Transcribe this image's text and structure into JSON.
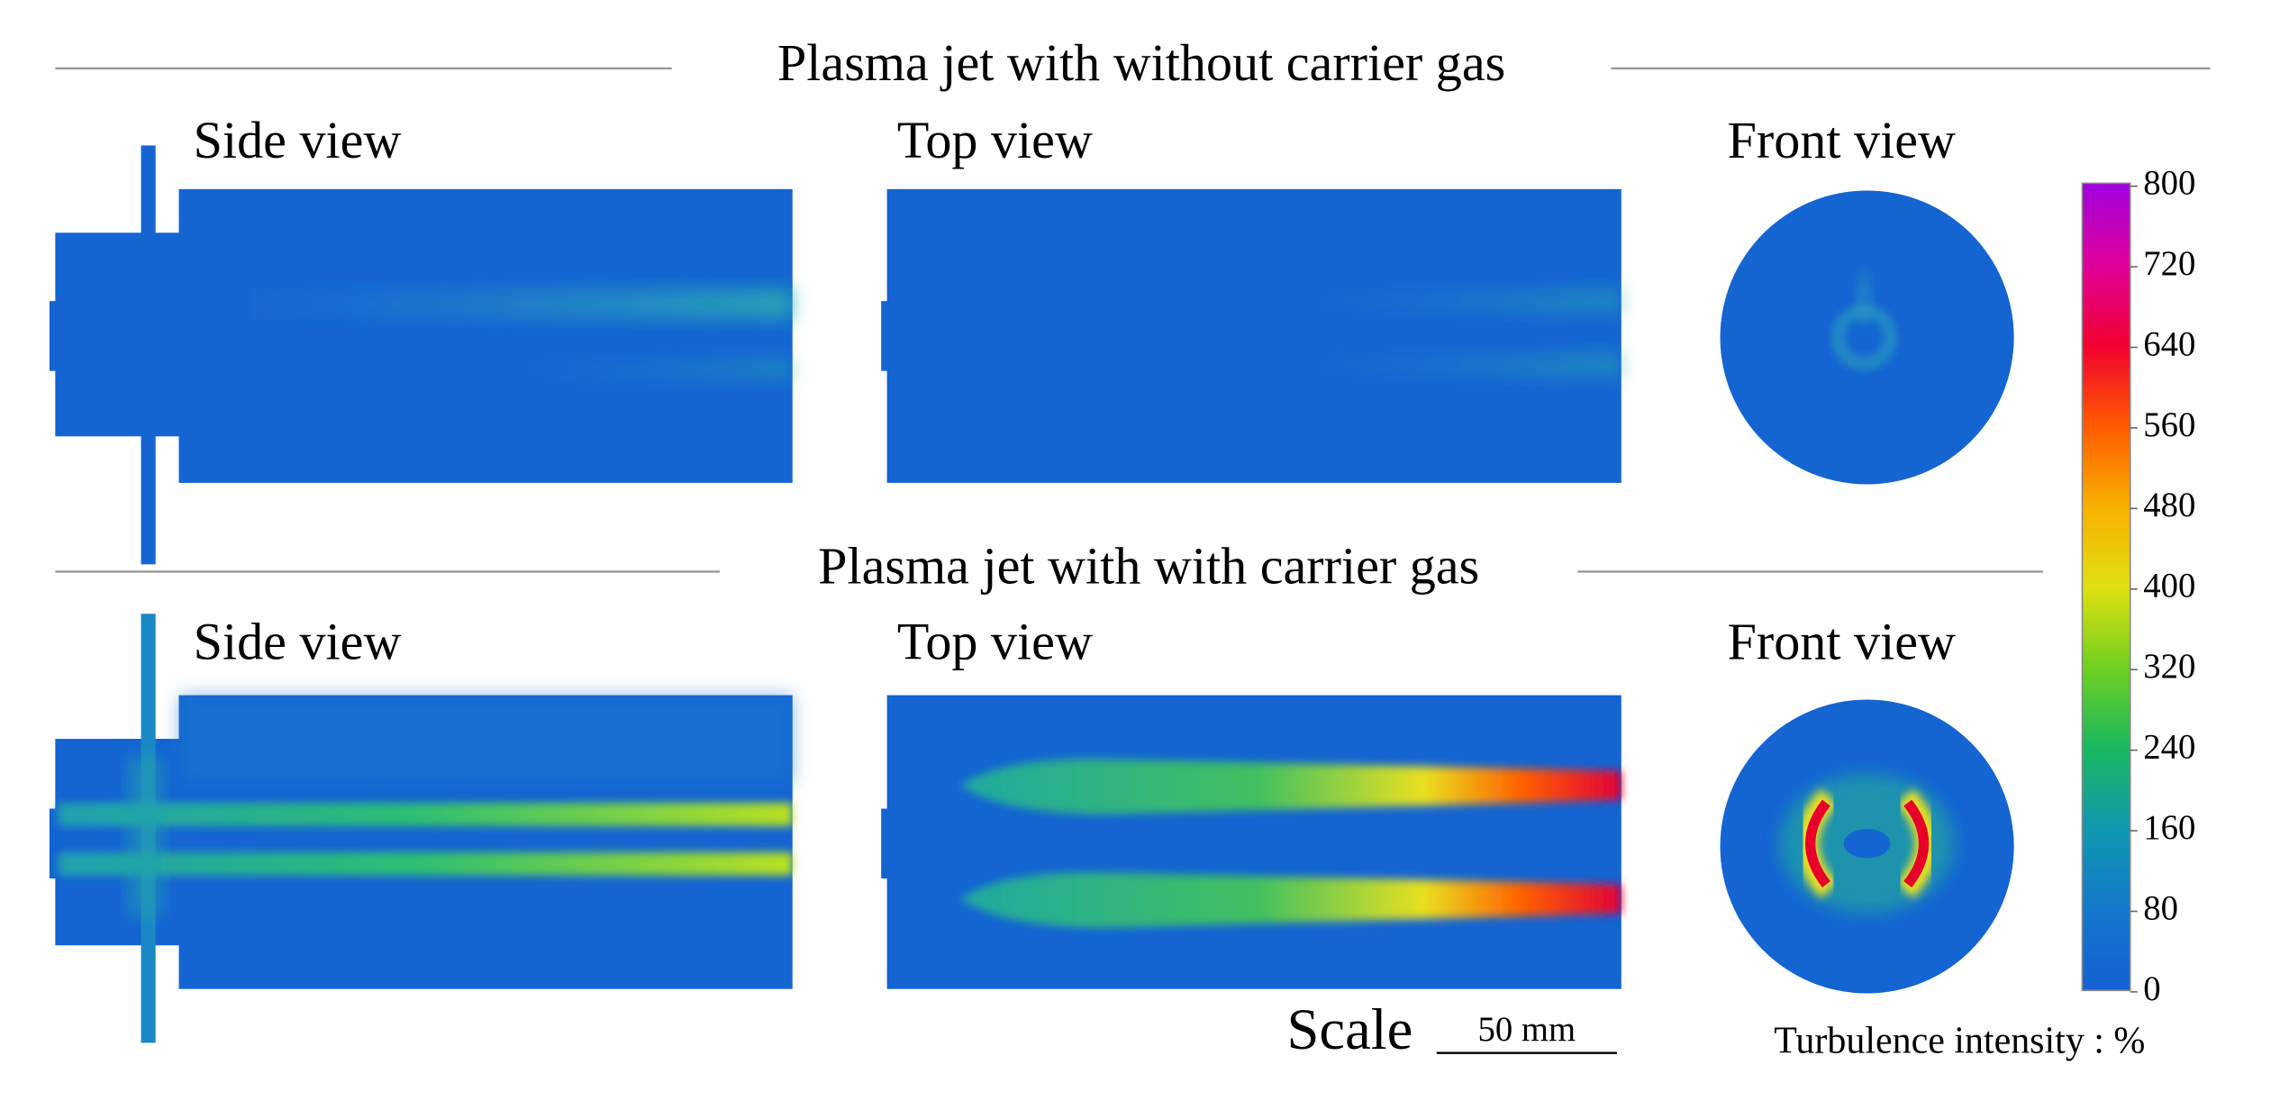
{
  "sections": [
    {
      "title": "Plasma jet with without carrier gas",
      "views": [
        "Side view",
        "Top view",
        "Front view"
      ]
    },
    {
      "title": "Plasma jet with with carrier gas",
      "views": [
        "Side view",
        "Top view",
        "Front view"
      ]
    }
  ],
  "colorbar": {
    "ticks": [
      0,
      80,
      160,
      240,
      320,
      400,
      480,
      560,
      640,
      720,
      800
    ],
    "label": "Turbulence intensity : %"
  },
  "scale": {
    "label": "Scale",
    "length": "50 mm"
  }
}
